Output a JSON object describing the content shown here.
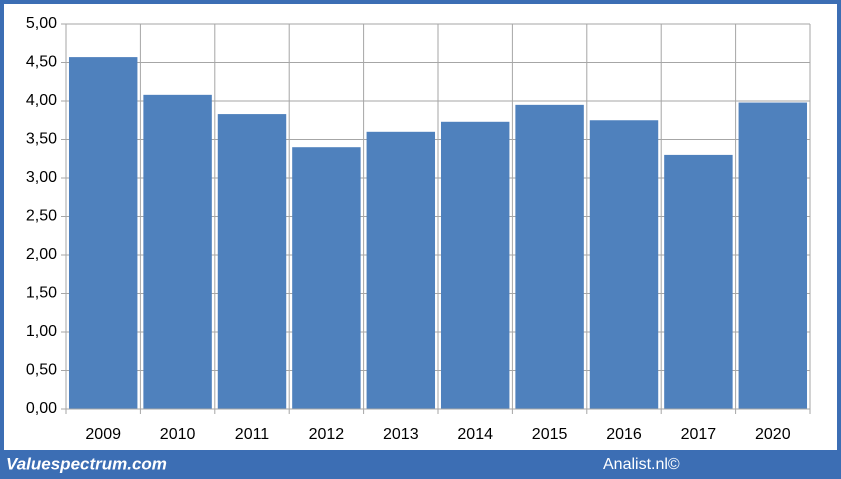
{
  "chart_data": {
    "type": "bar",
    "categories": [
      "2009",
      "2010",
      "2011",
      "2012",
      "2013",
      "2014",
      "2015",
      "2016",
      "2017",
      "2020"
    ],
    "values": [
      4.57,
      4.08,
      3.83,
      3.4,
      3.6,
      3.73,
      3.95,
      3.75,
      3.3,
      3.98
    ],
    "color": "#4f81bd",
    "ylim": [
      0,
      5
    ],
    "yticks": [
      {
        "value": 0,
        "label": "0,00"
      },
      {
        "value": 0.5,
        "label": "0,50"
      },
      {
        "value": 1,
        "label": "1,00"
      },
      {
        "value": 1.5,
        "label": "1,50"
      },
      {
        "value": 2,
        "label": "2,00"
      },
      {
        "value": 2.5,
        "label": "2,50"
      },
      {
        "value": 3,
        "label": "3,00"
      },
      {
        "value": 3.5,
        "label": "3,50"
      },
      {
        "value": 4,
        "label": "4,00"
      },
      {
        "value": 4.5,
        "label": "4,50"
      },
      {
        "value": 5,
        "label": "5,00"
      }
    ],
    "grid": true
  },
  "footer": {
    "left": "Valuespectrum.com",
    "right": "Analist.nl©"
  }
}
